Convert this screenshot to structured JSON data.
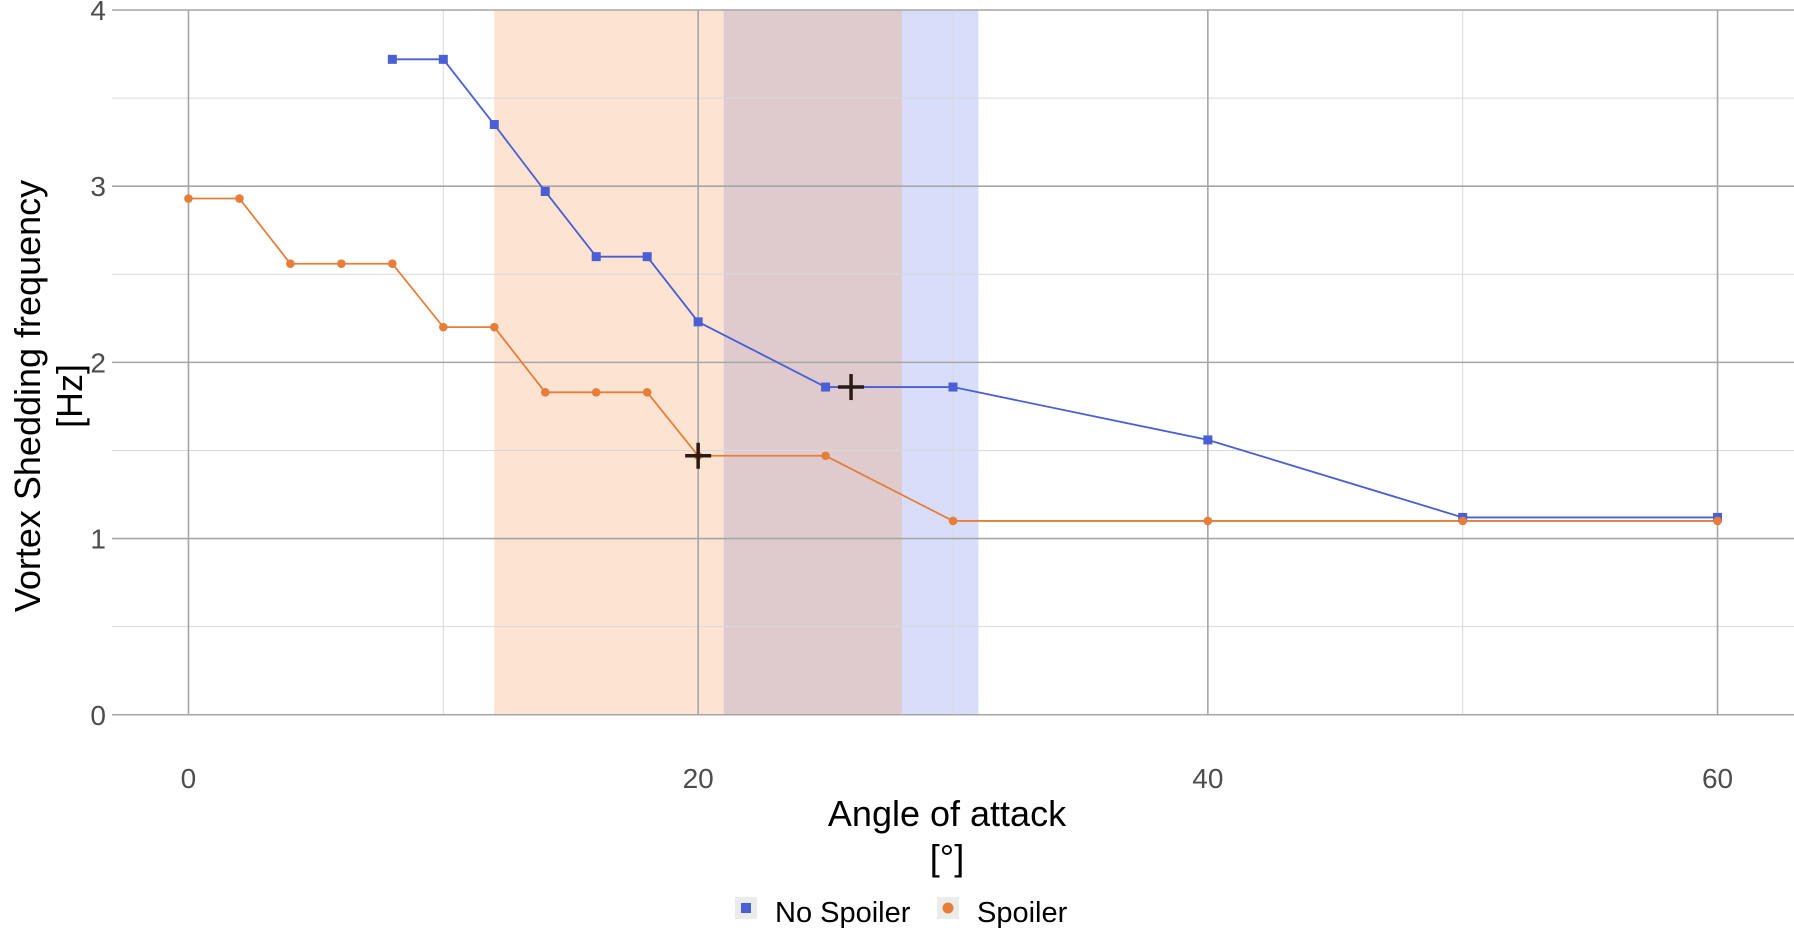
{
  "chart_data": {
    "type": "line",
    "title": "",
    "xlabel": "Angle of attack",
    "xunit": "[°]",
    "ylabel": "Vortex Shedding frequency",
    "yunit": "[Hz]",
    "xlim": [
      -3,
      63
    ],
    "ylim": [
      -0.2,
      4.0
    ],
    "x_ticks": [
      0,
      20,
      40,
      60
    ],
    "y_ticks": [
      0,
      1,
      2,
      3,
      4
    ],
    "grid": true,
    "legend_position": "bottom",
    "series": [
      {
        "name": "No Spoiler",
        "color": "#4a5fd4",
        "marker": "square",
        "x": [
          8,
          10,
          12,
          14,
          16,
          18,
          20,
          25,
          30,
          40,
          50,
          60
        ],
        "y": [
          3.72,
          3.72,
          3.35,
          2.97,
          2.6,
          2.6,
          2.23,
          1.86,
          1.86,
          1.56,
          1.12,
          1.12
        ]
      },
      {
        "name": "Spoiler",
        "color": "#e67e3a",
        "marker": "circle",
        "x": [
          0,
          2,
          4,
          6,
          8,
          10,
          12,
          14,
          16,
          18,
          20,
          25,
          30,
          40,
          50,
          60
        ],
        "y": [
          2.93,
          2.93,
          2.56,
          2.56,
          2.56,
          2.2,
          2.2,
          1.83,
          1.83,
          1.83,
          1.47,
          1.47,
          1.1,
          1.1,
          1.1,
          1.1
        ]
      }
    ],
    "shaded_regions": [
      {
        "series": "Spoiler",
        "x_start": 12,
        "x_end": 21,
        "color": "#fde3d1"
      },
      {
        "series": "overlap",
        "x_start": 21,
        "x_end": 28,
        "color": "#dfcbcd"
      },
      {
        "series": "No Spoiler",
        "x_start": 28,
        "x_end": 31,
        "color": "#d8defa"
      }
    ],
    "annotations": [
      {
        "type": "cross",
        "x": 26,
        "y": 1.86,
        "color": "#2b1a14"
      },
      {
        "type": "cross",
        "x": 20,
        "y": 1.47,
        "color": "#2b1a14"
      }
    ]
  }
}
